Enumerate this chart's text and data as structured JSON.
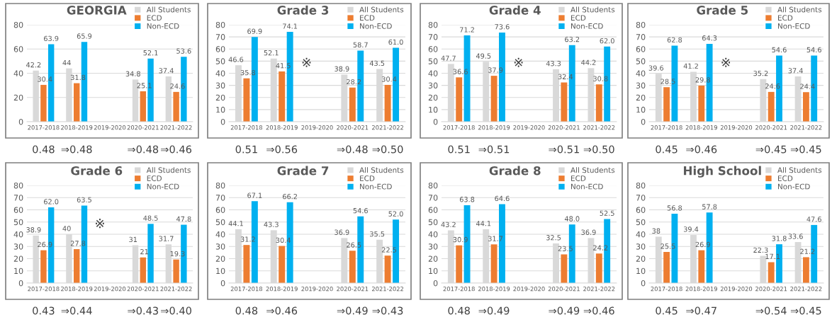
{
  "chart_data": [
    {
      "type": "bar",
      "title": "GEORGIA",
      "categories": [
        "2017-2018",
        "2018-2019",
        "2019-2020",
        "2020-2021",
        "2021-2022"
      ],
      "ylim": [
        0,
        80
      ],
      "yticks": [
        0,
        20,
        40,
        60,
        80
      ],
      "grid": "y",
      "legend": "top right",
      "series": [
        {
          "name": "All Students",
          "color": "#d9d9d9",
          "values": [
            42.2,
            44,
            null,
            34.8,
            37.4
          ],
          "value_labels": [
            "42.2",
            "44",
            null,
            "34.8",
            "37.4"
          ]
        },
        {
          "name": "ECD",
          "color": "#ed7d31",
          "values": [
            30.4,
            31.8,
            null,
            25.1,
            24.6
          ],
          "value_labels": [
            "30.4",
            "31.8",
            null,
            "25.1",
            "24.6"
          ]
        },
        {
          "name": "Non-ECD",
          "color": "#00b0f0",
          "values": [
            63.9,
            65.9,
            null,
            52.1,
            53.6
          ],
          "value_labels": [
            "63.9",
            "65.9",
            null,
            "52.1",
            "53.6"
          ]
        }
      ],
      "annotations": [
        "0.48",
        "⇒0.48",
        "⇒0.48",
        "⇒0.46"
      ]
    },
    {
      "type": "bar",
      "title": "Grade 3",
      "categories": [
        "2017-2018",
        "2018-2019",
        "2019-2020",
        "2020-2021",
        "2021-2022"
      ],
      "ylim": [
        0,
        80
      ],
      "yticks": [
        0,
        10,
        20,
        30,
        40,
        50,
        60,
        70,
        80
      ],
      "grid": "y",
      "legend": "top right",
      "series": [
        {
          "name": "All Students",
          "color": "#d9d9d9",
          "values": [
            46.6,
            52.1,
            null,
            38.9,
            43.5
          ],
          "value_labels": [
            "46.6",
            "52.1",
            null,
            "38.9",
            "43.5"
          ]
        },
        {
          "name": "ECD",
          "color": "#ed7d31",
          "values": [
            35.8,
            41.5,
            null,
            28.2,
            30.4
          ],
          "value_labels": [
            "35.8",
            "41.5",
            null,
            "28.2",
            "30.4"
          ]
        },
        {
          "name": "Non-ECD",
          "color": "#00b0f0",
          "values": [
            69.9,
            74.1,
            null,
            58.7,
            61.0
          ],
          "value_labels": [
            "69.9",
            "74.1",
            null,
            "58.7",
            "61.0"
          ]
        }
      ],
      "annotations": [
        "0.51",
        "⇒0.56",
        "⇒0.48",
        "⇒0.50",
        "※"
      ]
    },
    {
      "type": "bar",
      "title": "Grade 4",
      "categories": [
        "2017-2018",
        "2018-2019",
        "2019-2020",
        "2020-2021",
        "2021-2022"
      ],
      "ylim": [
        0,
        80
      ],
      "yticks": [
        0,
        10,
        20,
        30,
        40,
        50,
        60,
        70,
        80
      ],
      "grid": "y",
      "legend": "top right",
      "series": [
        {
          "name": "All Students",
          "color": "#d9d9d9",
          "values": [
            47.7,
            49.5,
            null,
            43.3,
            44.2
          ],
          "value_labels": [
            "47.7",
            "49.5",
            null,
            "43.3",
            "44.2"
          ]
        },
        {
          "name": "ECD",
          "color": "#ed7d31",
          "values": [
            36.6,
            37.9,
            null,
            32.4,
            30.8
          ],
          "value_labels": [
            "36.6",
            "37.9",
            null,
            "32.4",
            "30.8"
          ]
        },
        {
          "name": "Non-ECD",
          "color": "#00b0f0",
          "values": [
            71.2,
            73.6,
            null,
            63.2,
            62.0
          ],
          "value_labels": [
            "71.2",
            "73.6",
            null,
            "63.2",
            "62.0"
          ]
        }
      ],
      "annotations": [
        "0.51",
        "⇒0.51",
        "⇒0.51",
        "⇒0.50",
        "※"
      ]
    },
    {
      "type": "bar",
      "title": "Grade 5",
      "categories": [
        "2017-2018",
        "2018-2019",
        "2019-2020",
        "2020-2021",
        "2021-2022"
      ],
      "ylim": [
        0,
        80
      ],
      "yticks": [
        0,
        10,
        20,
        30,
        40,
        50,
        60,
        70,
        80
      ],
      "grid": "y",
      "legend": "top right",
      "series": [
        {
          "name": "All Students",
          "color": "#d9d9d9",
          "values": [
            39.6,
            41.2,
            null,
            35.2,
            37.4
          ],
          "value_labels": [
            "39.6",
            "41.2",
            null,
            "35.2",
            "37.4"
          ]
        },
        {
          "name": "ECD",
          "color": "#ed7d31",
          "values": [
            28.5,
            29.8,
            null,
            24.6,
            24.4
          ],
          "value_labels": [
            "28.5",
            "29.8",
            null,
            "24.6",
            "24.4"
          ]
        },
        {
          "name": "Non-ECD",
          "color": "#00b0f0",
          "values": [
            62.8,
            64.3,
            null,
            54.6,
            54.6
          ],
          "value_labels": [
            "62.8",
            "64.3",
            null,
            "54.6",
            "54.6"
          ]
        }
      ],
      "annotations": [
        "0.45",
        "⇒0.46",
        "⇒0.45",
        "⇒0.45",
        "※"
      ]
    },
    {
      "type": "bar",
      "title": "Grade 6",
      "categories": [
        "2017-2018",
        "2018-2019",
        "2019-2020",
        "2020-2021",
        "2021-2022"
      ],
      "ylim": [
        0,
        80
      ],
      "yticks": [
        0,
        10,
        20,
        30,
        40,
        50,
        60,
        70,
        80
      ],
      "grid": "y",
      "legend": "top right",
      "series": [
        {
          "name": "All Students",
          "color": "#d9d9d9",
          "values": [
            38.9,
            40,
            null,
            31,
            31.7
          ],
          "value_labels": [
            "38.9",
            "40",
            null,
            "31",
            "31.7"
          ]
        },
        {
          "name": "ECD",
          "color": "#ed7d31",
          "values": [
            26.9,
            27.8,
            null,
            21,
            19.3
          ],
          "value_labels": [
            "26.9",
            "27.8",
            null,
            "21",
            "19.3"
          ]
        },
        {
          "name": "Non-ECD",
          "color": "#00b0f0",
          "values": [
            62.0,
            63.5,
            null,
            48.5,
            47.8
          ],
          "value_labels": [
            "62.0",
            "63.5",
            null,
            "48.5",
            "47.8"
          ]
        }
      ],
      "annotations": [
        "0.43",
        "⇒0.44",
        "⇒0.43",
        "⇒0.40",
        "※"
      ]
    },
    {
      "type": "bar",
      "title": "Grade 7",
      "categories": [
        "2017-2018",
        "2018-2019",
        "2019-2020",
        "2020-2021",
        "2021-2022"
      ],
      "ylim": [
        0,
        80
      ],
      "yticks": [
        0,
        10,
        20,
        30,
        40,
        50,
        60,
        70,
        80
      ],
      "grid": "y",
      "legend": "top right",
      "series": [
        {
          "name": "All Students",
          "color": "#d9d9d9",
          "values": [
            44.1,
            43.3,
            null,
            36.9,
            35.5
          ],
          "value_labels": [
            "44.1",
            "43.3",
            null,
            "36.9",
            "35.5"
          ]
        },
        {
          "name": "ECD",
          "color": "#ed7d31",
          "values": [
            31.2,
            30.4,
            null,
            26.5,
            22.5
          ],
          "value_labels": [
            "31.2",
            "30.4",
            null,
            "26.5",
            "22.5"
          ]
        },
        {
          "name": "Non-ECD",
          "color": "#00b0f0",
          "values": [
            67.1,
            66.2,
            null,
            54.6,
            52.0
          ],
          "value_labels": [
            "67.1",
            "66.2",
            null,
            "54.6",
            "52.0"
          ]
        }
      ],
      "annotations": [
        "0.48",
        "⇒0.46",
        "⇒0.49",
        "⇒0.43"
      ]
    },
    {
      "type": "bar",
      "title": "Grade 8",
      "categories": [
        "2017-2018",
        "2018-2019",
        "2019-2020",
        "2020-2021",
        "2021-2022"
      ],
      "ylim": [
        0,
        80
      ],
      "yticks": [
        0,
        10,
        20,
        30,
        40,
        50,
        60,
        70,
        80
      ],
      "grid": "y",
      "legend": "top right",
      "series": [
        {
          "name": "All Students",
          "color": "#d9d9d9",
          "values": [
            43.2,
            44.1,
            null,
            32.5,
            36.9
          ],
          "value_labels": [
            "43.2",
            "44.1",
            null,
            "32.5",
            "36.9"
          ]
        },
        {
          "name": "ECD",
          "color": "#ed7d31",
          "values": [
            30.9,
            31.7,
            null,
            23.5,
            24.2
          ],
          "value_labels": [
            "30.9",
            "31.7",
            null,
            "23.5",
            "24.2"
          ]
        },
        {
          "name": "Non-ECD",
          "color": "#00b0f0",
          "values": [
            63.8,
            64.6,
            null,
            48.0,
            52.5
          ],
          "value_labels": [
            "63.8",
            "64.6",
            null,
            "48.0",
            "52.5"
          ]
        }
      ],
      "annotations": [
        "0.48",
        "⇒0.49",
        "⇒0.49",
        "⇒0.46"
      ]
    },
    {
      "type": "bar",
      "title": "High School",
      "categories": [
        "2017-2018",
        "2018-2019",
        "2019-2020",
        "2020-2021",
        "2021-2022"
      ],
      "ylim": [
        0,
        80
      ],
      "yticks": [
        0,
        10,
        20,
        30,
        40,
        50,
        60,
        70,
        80
      ],
      "grid": "y",
      "legend": "top right",
      "series": [
        {
          "name": "All Students",
          "color": "#d9d9d9",
          "values": [
            38,
            39.4,
            null,
            22.3,
            33.6
          ],
          "value_labels": [
            "38",
            "39.4",
            null,
            "22.3",
            "33.6"
          ]
        },
        {
          "name": "ECD",
          "color": "#ed7d31",
          "values": [
            25.5,
            26.9,
            null,
            17.1,
            21.2
          ],
          "value_labels": [
            "25.5",
            "26.9",
            null,
            "17.1",
            "21.2"
          ]
        },
        {
          "name": "Non-ECD",
          "color": "#00b0f0",
          "values": [
            56.8,
            57.8,
            null,
            31.8,
            47.6
          ],
          "value_labels": [
            "56.8",
            "57.8",
            null,
            "31.8",
            "47.6"
          ]
        }
      ],
      "annotations": [
        "0.45",
        "⇒0.47",
        "⇒0.54",
        "⇒0.45"
      ]
    }
  ]
}
